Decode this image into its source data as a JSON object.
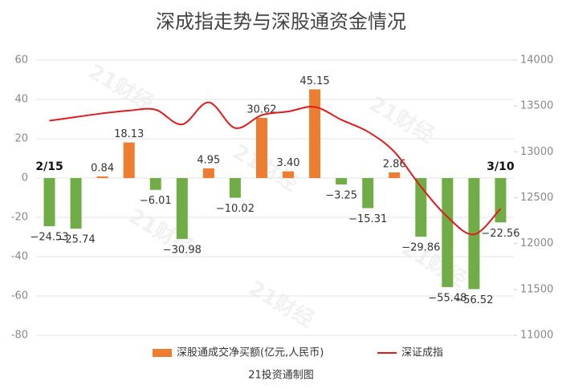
{
  "chart_data": {
    "type": "bar_line",
    "title": "深成指走势与深股通资金情况",
    "source": "21投资通制图",
    "watermark": "21财经",
    "categories": [
      "2/15",
      null,
      null,
      null,
      null,
      null,
      null,
      null,
      null,
      null,
      null,
      null,
      null,
      null,
      null,
      null,
      null,
      "3/10"
    ],
    "series": [
      {
        "name": "深股通成交净买额(亿元,人民币)",
        "type": "bar",
        "color": "#ed7d31",
        "negative_color": "#70ad47",
        "values": [
          -24.53,
          -25.74,
          0.84,
          18.13,
          -6.01,
          -30.98,
          4.95,
          -10.02,
          30.62,
          3.4,
          45.15,
          -3.25,
          -15.31,
          2.86,
          -29.86,
          -55.48,
          -56.52,
          -22.56
        ],
        "value_labels": [
          "−24.53",
          "−25.74",
          "0.84",
          "18.13",
          "−6.01",
          "−30.98",
          "4.95",
          "−10.02",
          "30.62",
          "3.40",
          "45.15",
          "−3.25",
          "−15.31",
          "2.86",
          "−29.86",
          "−55.48",
          "−56.52",
          "−22.56"
        ]
      },
      {
        "name": "深证成指",
        "type": "line",
        "color": "#e31a1c",
        "axis": "y2",
        "values": [
          13340,
          13380,
          13420,
          13450,
          13460,
          13300,
          13540,
          13260,
          13400,
          13440,
          13490,
          13350,
          13220,
          13000,
          12620,
          12290,
          12100,
          12380
        ]
      }
    ],
    "ylim": [
      -80,
      60
    ],
    "yticks": [
      -80,
      -60,
      -40,
      -20,
      0,
      20,
      40,
      60
    ],
    "y2lim": [
      11000,
      14000
    ],
    "y2ticks": [
      11000,
      11500,
      12000,
      12500,
      13000,
      13500,
      14000
    ],
    "grid": true,
    "legend": "bottom"
  }
}
